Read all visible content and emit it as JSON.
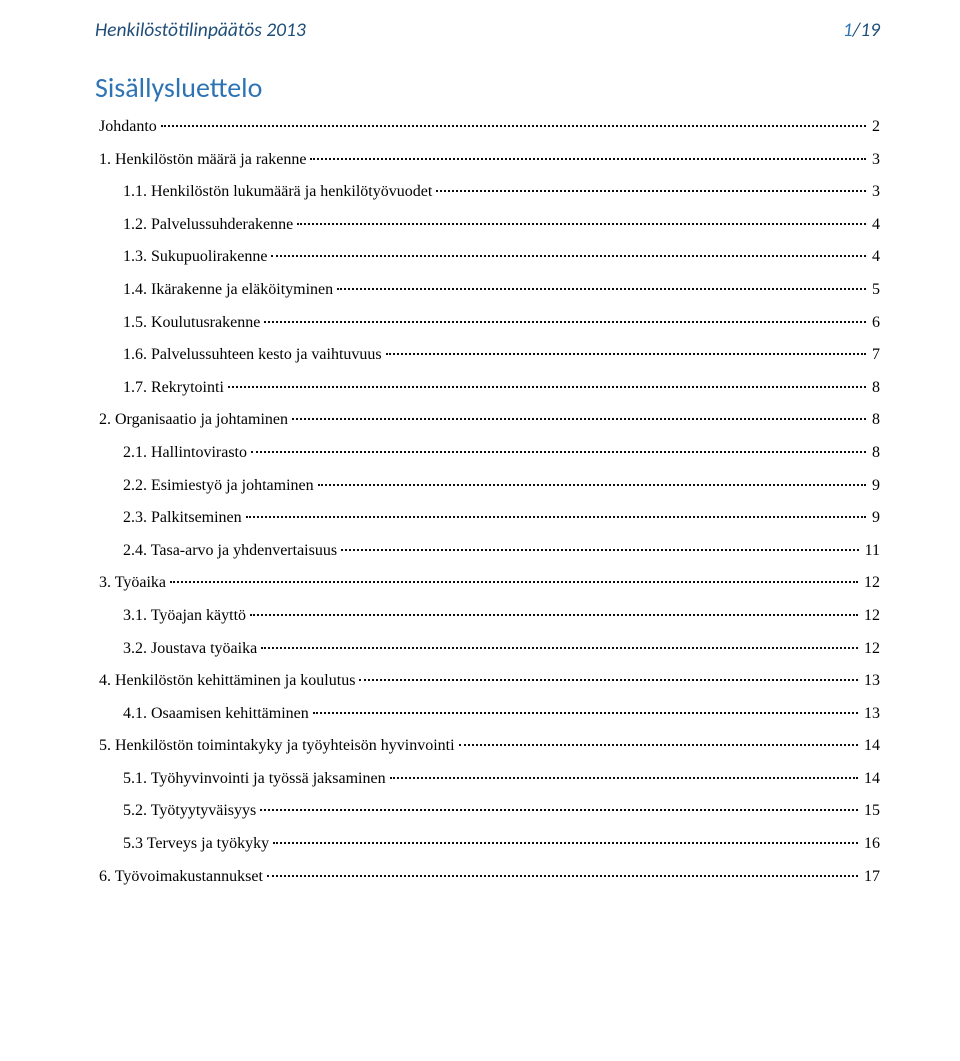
{
  "header": {
    "doc_title": "Henkilöstötilinpäätös 2013",
    "page_current": "1",
    "page_sep": "/",
    "page_total": "19"
  },
  "title": "Sisällysluettelo",
  "toc": [
    {
      "level": 1,
      "label": "Johdanto",
      "page": "2"
    },
    {
      "level": 1,
      "label": "1. Henkilöstön määrä ja rakenne",
      "page": "3"
    },
    {
      "level": 2,
      "label": "1.1. Henkilöstön lukumäärä ja henkilötyövuodet",
      "page": "3"
    },
    {
      "level": 2,
      "label": "1.2. Palvelussuhderakenne",
      "page": "4"
    },
    {
      "level": 2,
      "label": "1.3. Sukupuolirakenne",
      "page": "4"
    },
    {
      "level": 2,
      "label": "1.4. Ikärakenne ja eläköityminen",
      "page": "5"
    },
    {
      "level": 2,
      "label": "1.5. Koulutusrakenne",
      "page": "6"
    },
    {
      "level": 2,
      "label": "1.6. Palvelussuhteen kesto ja vaihtuvuus",
      "page": "7"
    },
    {
      "level": 2,
      "label": "1.7. Rekrytointi",
      "page": "8"
    },
    {
      "level": 1,
      "label": "2. Organisaatio ja johtaminen",
      "page": "8"
    },
    {
      "level": 2,
      "label": "2.1. Hallintovirasto",
      "page": "8"
    },
    {
      "level": 2,
      "label": "2.2. Esimiestyö ja johtaminen",
      "page": "9"
    },
    {
      "level": 2,
      "label": "2.3. Palkitseminen",
      "page": "9"
    },
    {
      "level": 2,
      "label": "2.4. Tasa-arvo ja yhdenvertaisuus",
      "page": "11"
    },
    {
      "level": 1,
      "label": "3. Työaika",
      "page": "12"
    },
    {
      "level": 2,
      "label": "3.1. Työajan käyttö",
      "page": "12"
    },
    {
      "level": 2,
      "label": "3.2. Joustava työaika",
      "page": "12"
    },
    {
      "level": 1,
      "label": "4. Henkilöstön kehittäminen ja koulutus",
      "page": "13"
    },
    {
      "level": 2,
      "label": "4.1. Osaamisen kehittäminen",
      "page": "13"
    },
    {
      "level": 1,
      "label": "5. Henkilöstön toimintakyky ja työyhteisön hyvinvointi",
      "page": "14"
    },
    {
      "level": 2,
      "label": "5.1. Työhyvinvointi ja työssä jaksaminen",
      "page": "14"
    },
    {
      "level": 2,
      "label": "5.2. Työtyytyväisyys",
      "page": "15"
    },
    {
      "level": 2,
      "label": "5.3 Terveys ja työkyky",
      "page": "16"
    },
    {
      "level": 1,
      "label": "6. Työvoimakustannukset",
      "page": "17"
    }
  ]
}
